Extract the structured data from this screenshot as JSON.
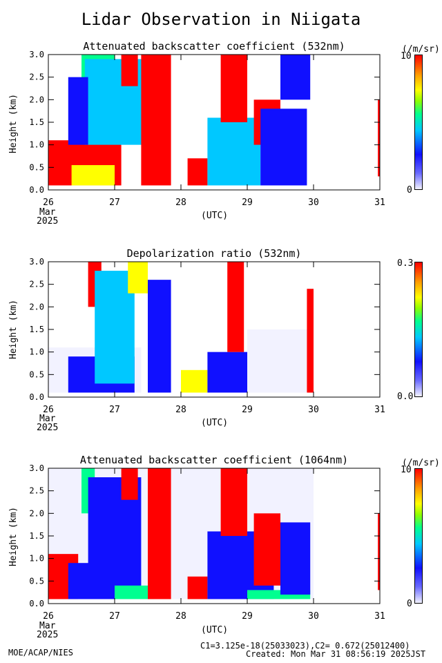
{
  "page": {
    "title": "Lidar Observation in Niigata",
    "footer_left": "MOE/ACAP/NIES",
    "footer_calib": "C1=3.125e-18(25033023),C2= 0.672(25012400)",
    "footer_created": "Created: Mon Mar 31 08:56:19 2025JST"
  },
  "axes": {
    "ylabel": "Height (km)",
    "xlabel": "(UTC)",
    "yticks": [
      "0.0",
      "0.5",
      "1.0",
      "1.5",
      "2.0",
      "2.5",
      "3.0"
    ],
    "xticks": [
      "26",
      "27",
      "28",
      "29",
      "30",
      "31"
    ],
    "month": "Mar",
    "year": "2025"
  },
  "colors": {
    "low": "#f2f2ff",
    "blue": "#1010ff",
    "cyan": "#00c8ff",
    "green": "#00ff90",
    "yellow": "#ffff00",
    "red": "#ff0000"
  },
  "chart_data": [
    {
      "type": "heatmap",
      "title": "Attenuated backscatter coefficient (532nm)",
      "ylabel": "Height (km)",
      "xlabel": "(UTC)",
      "xlim": [
        26,
        31
      ],
      "ylim": [
        0,
        3
      ],
      "colorbar": {
        "unit": "(/m/sr)",
        "max": "10",
        "min": "0"
      },
      "features": [
        {
          "x0": 26.0,
          "x1": 27.1,
          "y0": 0.1,
          "y1": 1.1,
          "level": "red"
        },
        {
          "x0": 26.35,
          "x1": 27.0,
          "y0": 0.1,
          "y1": 0.55,
          "level": "yellow"
        },
        {
          "x0": 26.5,
          "x1": 27.0,
          "y0": 1.5,
          "y1": 3.0,
          "level": "green"
        },
        {
          "x0": 26.55,
          "x1": 27.5,
          "y0": 1.0,
          "y1": 2.9,
          "level": "cyan"
        },
        {
          "x0": 26.3,
          "x1": 26.6,
          "y0": 1.0,
          "y1": 2.5,
          "level": "blue"
        },
        {
          "x0": 27.1,
          "x1": 27.35,
          "y0": 2.3,
          "y1": 3.0,
          "level": "red"
        },
        {
          "x0": 27.4,
          "x1": 27.85,
          "y0": 0.1,
          "y1": 3.0,
          "level": "red"
        },
        {
          "x0": 28.1,
          "x1": 28.4,
          "y0": 0.1,
          "y1": 0.7,
          "level": "red"
        },
        {
          "x0": 28.4,
          "x1": 29.2,
          "y0": 0.1,
          "y1": 1.6,
          "level": "cyan"
        },
        {
          "x0": 28.6,
          "x1": 29.0,
          "y0": 1.5,
          "y1": 3.0,
          "level": "red"
        },
        {
          "x0": 29.1,
          "x1": 29.5,
          "y0": 1.0,
          "y1": 2.0,
          "level": "red"
        },
        {
          "x0": 29.2,
          "x1": 29.9,
          "y0": 0.1,
          "y1": 1.8,
          "level": "blue"
        },
        {
          "x0": 29.5,
          "x1": 29.95,
          "y0": 2.0,
          "y1": 3.0,
          "level": "blue"
        },
        {
          "x0": 30.97,
          "x1": 31.0,
          "y0": 0.3,
          "y1": 2.0,
          "level": "red"
        }
      ]
    },
    {
      "type": "heatmap",
      "title": "Depolarization ratio (532nm)",
      "ylabel": "Height (km)",
      "xlabel": "(UTC)",
      "xlim": [
        26,
        31
      ],
      "ylim": [
        0,
        3
      ],
      "colorbar": {
        "unit": "",
        "max": "0.3",
        "min": "0.0"
      },
      "features": [
        {
          "x0": 26.0,
          "x1": 27.4,
          "y0": 0.1,
          "y1": 1.1,
          "level": "low"
        },
        {
          "x0": 26.3,
          "x1": 27.3,
          "y0": 0.1,
          "y1": 0.9,
          "level": "blue"
        },
        {
          "x0": 26.6,
          "x1": 26.8,
          "y0": 2.0,
          "y1": 3.0,
          "level": "red"
        },
        {
          "x0": 26.7,
          "x1": 27.3,
          "y0": 0.3,
          "y1": 2.8,
          "level": "cyan"
        },
        {
          "x0": 27.2,
          "x1": 27.5,
          "y0": 2.3,
          "y1": 3.0,
          "level": "yellow"
        },
        {
          "x0": 27.5,
          "x1": 27.85,
          "y0": 0.1,
          "y1": 2.6,
          "level": "blue"
        },
        {
          "x0": 28.0,
          "x1": 28.4,
          "y0": 0.1,
          "y1": 0.6,
          "level": "yellow"
        },
        {
          "x0": 28.4,
          "x1": 29.0,
          "y0": 0.1,
          "y1": 1.0,
          "level": "blue"
        },
        {
          "x0": 28.7,
          "x1": 28.95,
          "y0": 1.0,
          "y1": 3.0,
          "level": "red"
        },
        {
          "x0": 29.0,
          "x1": 29.9,
          "y0": 0.1,
          "y1": 1.5,
          "level": "low"
        },
        {
          "x0": 29.9,
          "x1": 30.0,
          "y0": 0.1,
          "y1": 2.4,
          "level": "red"
        }
      ]
    },
    {
      "type": "heatmap",
      "title": "Attenuated backscatter coefficient (1064nm)",
      "ylabel": "Height (km)",
      "xlabel": "(UTC)",
      "xlim": [
        26,
        31
      ],
      "ylim": [
        0,
        3
      ],
      "colorbar": {
        "unit": "(/m/sr)",
        "max": "10",
        "min": "0"
      },
      "features": [
        {
          "x0": 26.0,
          "x1": 30.0,
          "y0": 0.1,
          "y1": 3.0,
          "level": "low"
        },
        {
          "x0": 26.0,
          "x1": 26.45,
          "y0": 0.1,
          "y1": 1.1,
          "level": "red"
        },
        {
          "x0": 26.3,
          "x1": 27.0,
          "y0": 0.1,
          "y1": 0.9,
          "level": "blue"
        },
        {
          "x0": 26.5,
          "x1": 26.7,
          "y0": 2.0,
          "y1": 3.0,
          "level": "green"
        },
        {
          "x0": 26.6,
          "x1": 27.4,
          "y0": 0.3,
          "y1": 2.8,
          "level": "blue"
        },
        {
          "x0": 27.0,
          "x1": 27.6,
          "y0": 0.1,
          "y1": 0.4,
          "level": "green"
        },
        {
          "x0": 27.1,
          "x1": 27.35,
          "y0": 2.3,
          "y1": 3.0,
          "level": "red"
        },
        {
          "x0": 27.5,
          "x1": 27.85,
          "y0": 0.1,
          "y1": 3.0,
          "level": "red"
        },
        {
          "x0": 28.1,
          "x1": 28.4,
          "y0": 0.1,
          "y1": 0.6,
          "level": "red"
        },
        {
          "x0": 28.4,
          "x1": 29.4,
          "y0": 0.1,
          "y1": 1.6,
          "level": "blue"
        },
        {
          "x0": 28.6,
          "x1": 29.0,
          "y0": 1.5,
          "y1": 3.0,
          "level": "red"
        },
        {
          "x0": 29.0,
          "x1": 29.95,
          "y0": 0.1,
          "y1": 0.3,
          "level": "green"
        },
        {
          "x0": 29.1,
          "x1": 29.5,
          "y0": 0.4,
          "y1": 2.0,
          "level": "red"
        },
        {
          "x0": 29.5,
          "x1": 29.95,
          "y0": 0.2,
          "y1": 1.8,
          "level": "blue"
        },
        {
          "x0": 30.97,
          "x1": 31.0,
          "y0": 0.3,
          "y1": 2.0,
          "level": "red"
        }
      ]
    }
  ]
}
